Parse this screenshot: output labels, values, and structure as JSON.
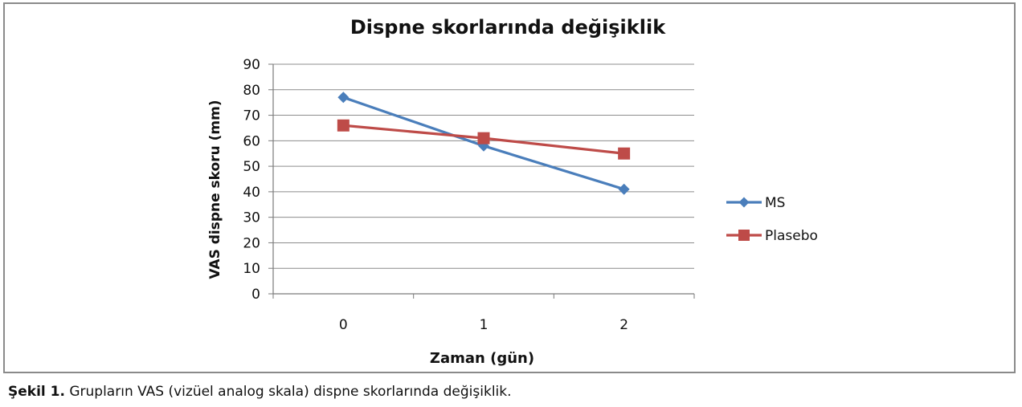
{
  "chart_data": {
    "type": "line",
    "title": "Dispne skorlarında değişiklik",
    "xlabel": "Zaman (gün)",
    "ylabel": "VAS dispne skoru (mm)",
    "categories": [
      "0",
      "1",
      "2"
    ],
    "ylim": [
      0,
      90
    ],
    "yticks": [
      0,
      10,
      20,
      30,
      40,
      50,
      60,
      70,
      80,
      90
    ],
    "grid": true,
    "legend": "right",
    "series": [
      {
        "name": "MS",
        "values": [
          77,
          58,
          41
        ],
        "color": "#4a7ebb",
        "marker": "diamond"
      },
      {
        "name": "Plasebo",
        "values": [
          66,
          61,
          55
        ],
        "color": "#be4b48",
        "marker": "square"
      }
    ]
  },
  "caption": {
    "label": "Şekil 1.",
    "text": " Grupların VAS (vizüel analog skala) dispne skorlarında değişiklik."
  }
}
